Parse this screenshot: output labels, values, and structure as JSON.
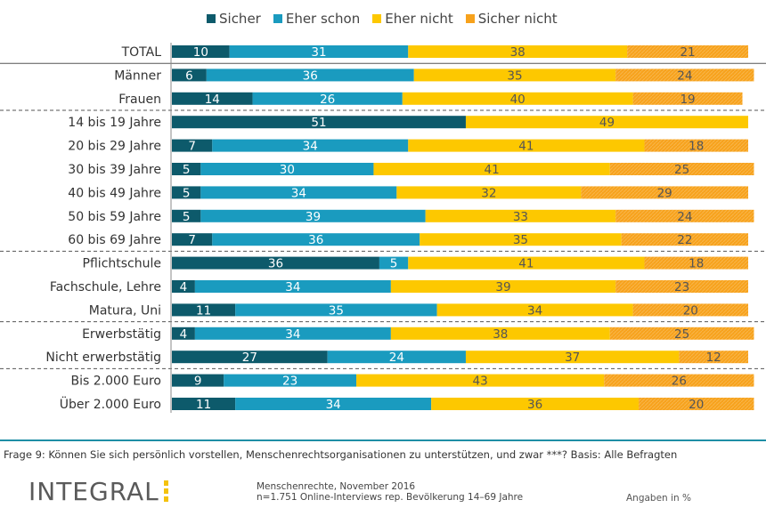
{
  "legend": [
    {
      "label": "Sicher",
      "color": "#0d5a6b"
    },
    {
      "label": "Eher schon",
      "color": "#1a9bbf"
    },
    {
      "label": "Eher nicht",
      "color": "#fdc800"
    },
    {
      "label": "Sicher nicht",
      "color": "#f7a21c"
    }
  ],
  "chart_data": {
    "type": "bar",
    "orientation": "horizontal",
    "stacked": true,
    "categories": [
      "TOTAL",
      "Männer",
      "Frauen",
      "14 bis 19 Jahre",
      "20 bis 29 Jahre",
      "30 bis 39 Jahre",
      "40 bis 49 Jahre",
      "50 bis 59 Jahre",
      "60 bis 69 Jahre",
      "Pflichtschule",
      "Fachschule, Lehre",
      "Matura, Uni",
      "Erwerbstätig",
      "Nicht erwerbstätig",
      "Bis 2.000 Euro",
      "Über 2.000 Euro"
    ],
    "series": [
      {
        "name": "Sicher",
        "values": [
          10,
          6,
          14,
          51,
          7,
          5,
          5,
          5,
          7,
          36,
          4,
          11,
          4,
          27,
          9,
          11
        ]
      },
      {
        "name": "Eher schon",
        "values": [
          31,
          36,
          26,
          null,
          34,
          30,
          34,
          39,
          36,
          5,
          34,
          35,
          34,
          24,
          23,
          34
        ]
      },
      {
        "name": "Eher nicht",
        "values": [
          38,
          35,
          40,
          49,
          41,
          41,
          32,
          33,
          35,
          41,
          39,
          34,
          38,
          37,
          43,
          36
        ]
      },
      {
        "name": "Sicher nicht",
        "values": [
          21,
          24,
          19,
          null,
          18,
          25,
          29,
          24,
          22,
          18,
          23,
          20,
          25,
          12,
          26,
          20
        ]
      }
    ],
    "groups_after_index": [
      0,
      2,
      8,
      11,
      13
    ],
    "xlim": [
      0,
      100
    ]
  },
  "footer": {
    "question": "Frage 9: Können Sie sich persönlich vorstellen, Menschenrechtsorganisationen zu unterstützen, und zwar ***?  Basis: Alle Befragten",
    "logo": "INTEGRAL",
    "source_line1": "Menschenrechte, November 2016",
    "source_line2": "n=1.751 Online-Interviews rep. Bevölkerung 14–69 Jahre",
    "unit": "Angaben in %"
  }
}
